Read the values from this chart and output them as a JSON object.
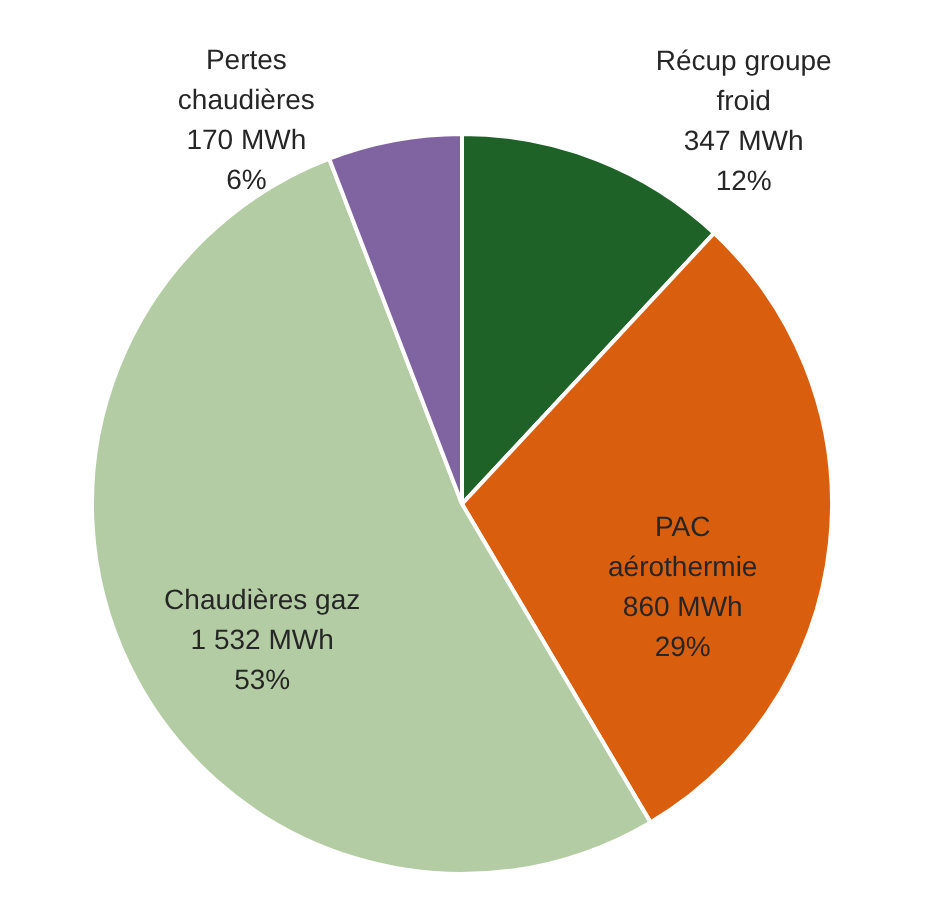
{
  "chart_data": {
    "type": "pie",
    "categories": [
      "Récup groupe froid",
      "PAC aérothermie",
      "Chaudières gaz",
      "Pertes chaudières"
    ],
    "values": [
      347,
      860,
      1532,
      170
    ],
    "value_labels": [
      "347 MWh\n12%",
      "860 MWh\n29%",
      "1 532 MWh\n53%",
      "170 MWh\n6%"
    ],
    "colors": [
      "#1e6228",
      "#d95f0e",
      "#b4cca4",
      "#8064a2"
    ]
  }
}
